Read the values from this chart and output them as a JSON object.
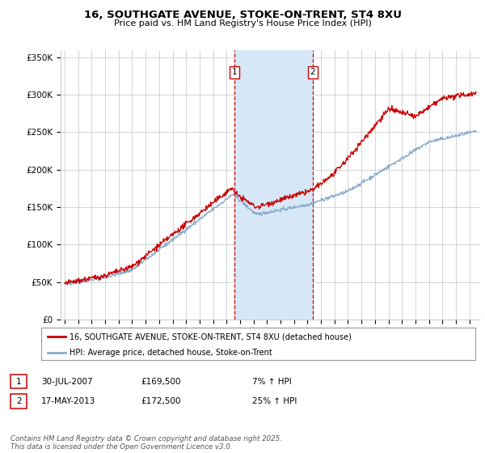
{
  "title": "16, SOUTHGATE AVENUE, STOKE-ON-TRENT, ST4 8XU",
  "subtitle": "Price paid vs. HM Land Registry's House Price Index (HPI)",
  "legend_label_red": "16, SOUTHGATE AVENUE, STOKE-ON-TRENT, ST4 8XU (detached house)",
  "legend_label_blue": "HPI: Average price, detached house, Stoke-on-Trent",
  "transaction1_date": "30-JUL-2007",
  "transaction1_price": "£169,500",
  "transaction1_hpi": "7% ↑ HPI",
  "transaction2_date": "17-MAY-2013",
  "transaction2_price": "£172,500",
  "transaction2_hpi": "25% ↑ HPI",
  "footer": "Contains HM Land Registry data © Crown copyright and database right 2025.\nThis data is licensed under the Open Government Licence v3.0.",
  "red_color": "#cc0000",
  "blue_color": "#88aacc",
  "shading_color": "#d6e8f7",
  "vline_color": "#cc0000",
  "grid_color": "#cccccc",
  "background_color": "#ffffff",
  "ylim": [
    0,
    360000
  ],
  "yticks": [
    0,
    50000,
    100000,
    150000,
    200000,
    250000,
    300000,
    350000
  ],
  "x_start_year": 1995,
  "x_end_year": 2025,
  "transaction1_x": 2007.58,
  "transaction2_x": 2013.38
}
